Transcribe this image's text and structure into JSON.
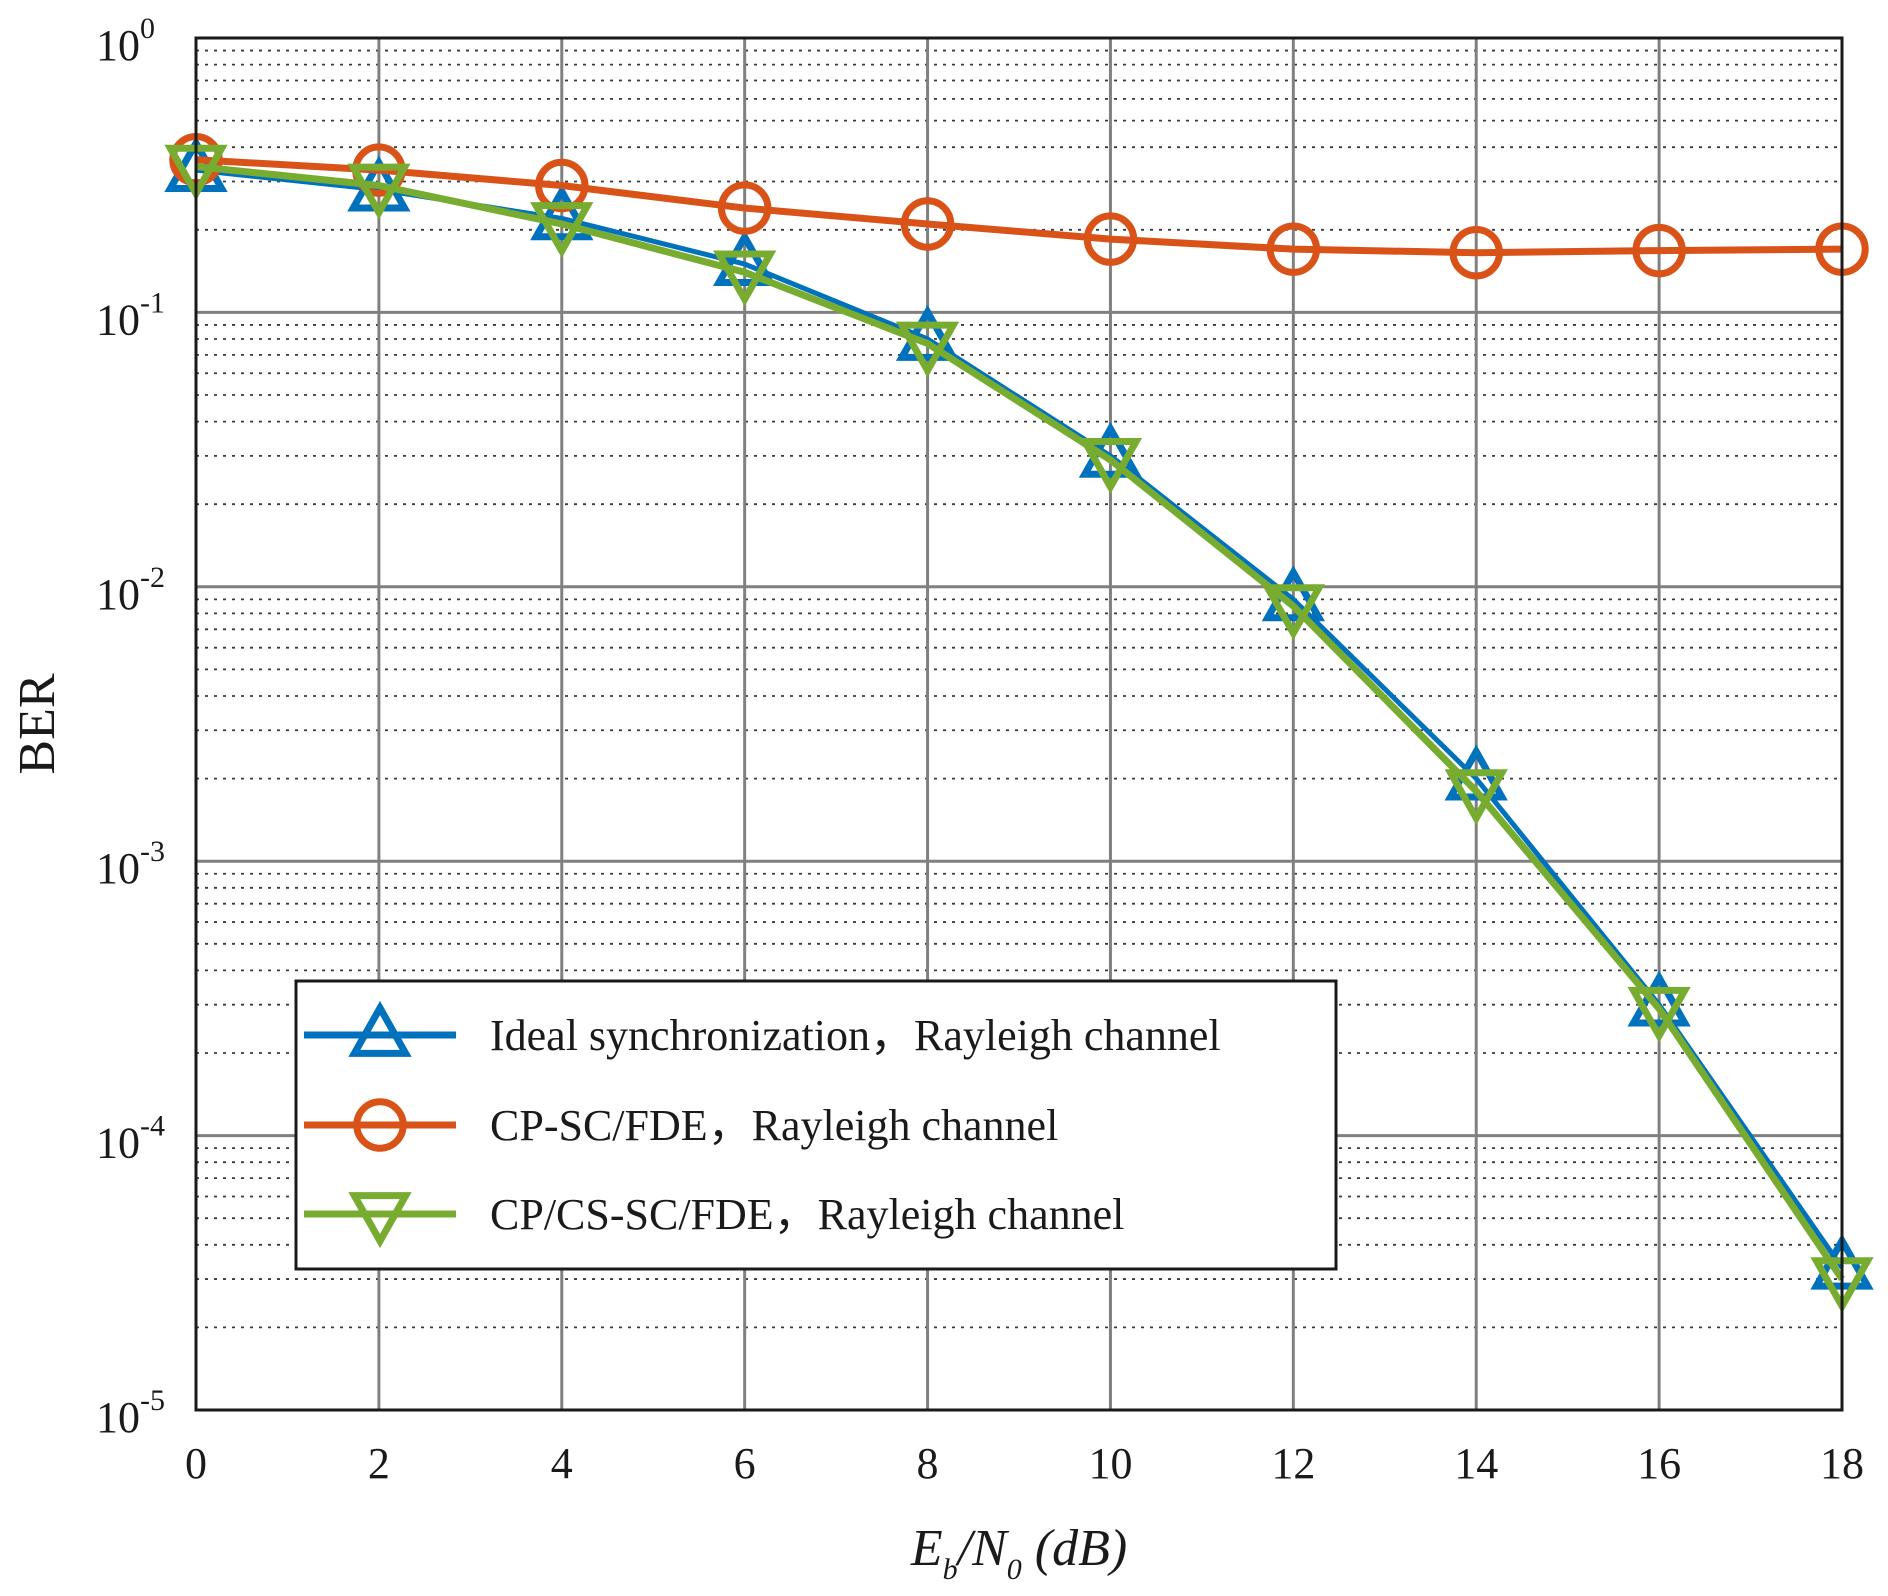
{
  "chart_data": {
    "type": "line",
    "title": "",
    "xlabel": "E_b/N_0 (dB)",
    "xlabel_parts": {
      "E": "E",
      "b": "b",
      "slash": "/",
      "N": "N",
      "zero": "0",
      "unit": " (dB)"
    },
    "ylabel": "BER",
    "xlim": [
      0,
      18
    ],
    "ylim": [
      1e-05,
      1
    ],
    "yscale": "log",
    "grid": true,
    "x_ticks": [
      "0",
      "2",
      "4",
      "6",
      "8",
      "10",
      "12",
      "14",
      "16",
      "18"
    ],
    "y_ticks": [
      {
        "base": "10",
        "exp": "0",
        "value": 1
      },
      {
        "base": "10",
        "exp": "-1",
        "value": 0.1
      },
      {
        "base": "10",
        "exp": "-2",
        "value": 0.01
      },
      {
        "base": "10",
        "exp": "-3",
        "value": 0.001
      },
      {
        "base": "10",
        "exp": "-4",
        "value": 0.0001
      },
      {
        "base": "10",
        "exp": "-5",
        "value": 1e-05
      }
    ],
    "x": [
      0,
      2,
      4,
      6,
      8,
      10,
      12,
      14,
      16,
      18
    ],
    "legend_position": "lower-left",
    "series": [
      {
        "name": "Ideal synchronization，Rayleigh channel",
        "color": "#0072bd",
        "marker": "triangle-up",
        "values": [
          0.33,
          0.28,
          0.22,
          0.15,
          0.08,
          0.03,
          0.009,
          0.002,
          0.0003,
          3.3e-05
        ]
      },
      {
        "name": "CP-SC/FDE，Rayleigh channel",
        "color": "#d95319",
        "marker": "circle",
        "values": [
          0.36,
          0.33,
          0.29,
          0.24,
          0.21,
          0.185,
          0.17,
          0.165,
          0.168,
          0.17
        ]
      },
      {
        "name": "CP/CS-SC/FDE，Rayleigh channel",
        "color": "#77ac30",
        "marker": "triangle-down",
        "values": [
          0.34,
          0.29,
          0.21,
          0.14,
          0.077,
          0.029,
          0.0085,
          0.0018,
          0.00029,
          3e-05
        ]
      }
    ]
  }
}
